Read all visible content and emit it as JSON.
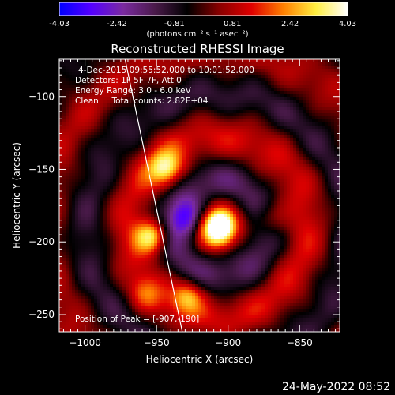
{
  "colorbar": {
    "tick_labels": [
      "-4.03",
      "-2.42",
      "-0.81",
      "0.81",
      "2.42",
      "4.03"
    ],
    "unit_label": "(photons cm⁻² s⁻¹ asec⁻²)",
    "range": [
      -4.03,
      4.03
    ],
    "colors": [
      "#0000ff",
      "#5500ff",
      "#7a2aa0",
      "#4a1a4a",
      "#000000",
      "#8a0000",
      "#e00000",
      "#ff8000",
      "#ffee40",
      "#ffffff"
    ]
  },
  "annotations": [
    "4-Dec-2015 09:55:52.000 to 10:01:52.000",
    "Detectors: 1F 5F 7F, Att 0",
    "Energy Range: 3.0 - 6.0 keV",
    "Clean     Total counts: 2.82E+04"
  ],
  "peak_label": "Position of Peak = [-907,-190]",
  "footer_date": "24-May-2022 08:52",
  "chart_data": {
    "type": "heatmap",
    "title": "Reconstructed RHESSI Image",
    "xlabel": "Heliocentric X (arcsec)",
    "ylabel": "Heliocentric Y (arcsec)",
    "xlim": [
      -1018,
      -822
    ],
    "ylim": [
      -262,
      -74
    ],
    "x_ticks": [
      -1000,
      -950,
      -900,
      -850
    ],
    "y_ticks": [
      -100,
      -150,
      -200,
      -250
    ],
    "x_tick_labels": [
      "−1000",
      "−950",
      "−900",
      "−850"
    ],
    "y_tick_labels": [
      "−100",
      "−150",
      "−200",
      "−250"
    ],
    "peak": [
      -907,
      -190
    ],
    "limb_line": [
      [
        -972,
        -74
      ],
      [
        -932,
        -262
      ]
    ],
    "sources": [
      {
        "x": -907,
        "y": -190,
        "amp": 4.03,
        "sigma": 8
      },
      {
        "x": -953,
        "y": -196,
        "amp": 3.3,
        "sigma": 8
      },
      {
        "x": -943,
        "y": -150,
        "amp": 3.0,
        "sigma": 9
      },
      {
        "x": -928,
        "y": -237,
        "amp": 2.2,
        "sigma": 8
      },
      {
        "x": -872,
        "y": -184,
        "amp": 1.4,
        "sigma": 9
      },
      {
        "x": -958,
        "y": -236,
        "amp": 1.2,
        "sigma": 8
      }
    ]
  }
}
